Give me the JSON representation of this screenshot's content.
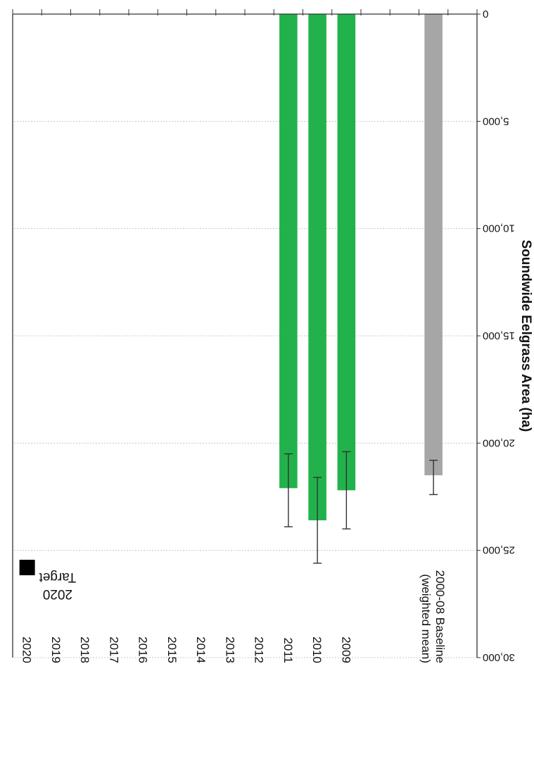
{
  "chart_data": {
    "type": "bar",
    "orientation": "rotated-180",
    "ylabel": "Soundwide Eelgrass Area (ha)",
    "ylim": [
      0,
      30000
    ],
    "yticks": [
      "0",
      "5,000",
      "10,000",
      "15,000",
      "20,000",
      "25,000",
      "30,000"
    ],
    "grid": true,
    "categories": [
      {
        "key": "b0",
        "lines": []
      },
      {
        "key": "baseline",
        "lines": [
          "2000-08 Baseline",
          "(weighted mean)"
        ]
      },
      {
        "key": "b1",
        "lines": []
      },
      {
        "key": "b2",
        "lines": []
      },
      {
        "key": "2009",
        "lines": [
          "2009"
        ]
      },
      {
        "key": "2010",
        "lines": [
          "2010"
        ]
      },
      {
        "key": "2011",
        "lines": [
          "2011"
        ]
      },
      {
        "key": "2012",
        "lines": [
          "2012"
        ]
      },
      {
        "key": "2013",
        "lines": [
          "2013"
        ]
      },
      {
        "key": "2014",
        "lines": [
          "2014"
        ]
      },
      {
        "key": "2015",
        "lines": [
          "2015"
        ]
      },
      {
        "key": "2016",
        "lines": [
          "2016"
        ]
      },
      {
        "key": "2017",
        "lines": [
          "2017"
        ]
      },
      {
        "key": "2018",
        "lines": [
          "2018"
        ]
      },
      {
        "key": "2019",
        "lines": [
          "2019"
        ]
      },
      {
        "key": "2020",
        "lines": [
          "2020"
        ]
      }
    ],
    "bars": [
      {
        "category": "baseline",
        "value": 21500,
        "err_low": 20800,
        "err_high": 22400,
        "color": "#a6a6a6"
      },
      {
        "category": "2009",
        "value": 22200,
        "err_low": 20400,
        "err_high": 24000,
        "color": "#22b24c"
      },
      {
        "category": "2010",
        "value": 23600,
        "err_low": 21600,
        "err_high": 25600,
        "color": "#22b24c"
      },
      {
        "category": "2011",
        "value": 22100,
        "err_low": 20500,
        "err_high": 23900,
        "color": "#22b24c"
      }
    ],
    "target": {
      "category": "2020",
      "value": 25800,
      "label_lines": [
        "2020",
        "Target"
      ],
      "color": "#000000"
    }
  }
}
